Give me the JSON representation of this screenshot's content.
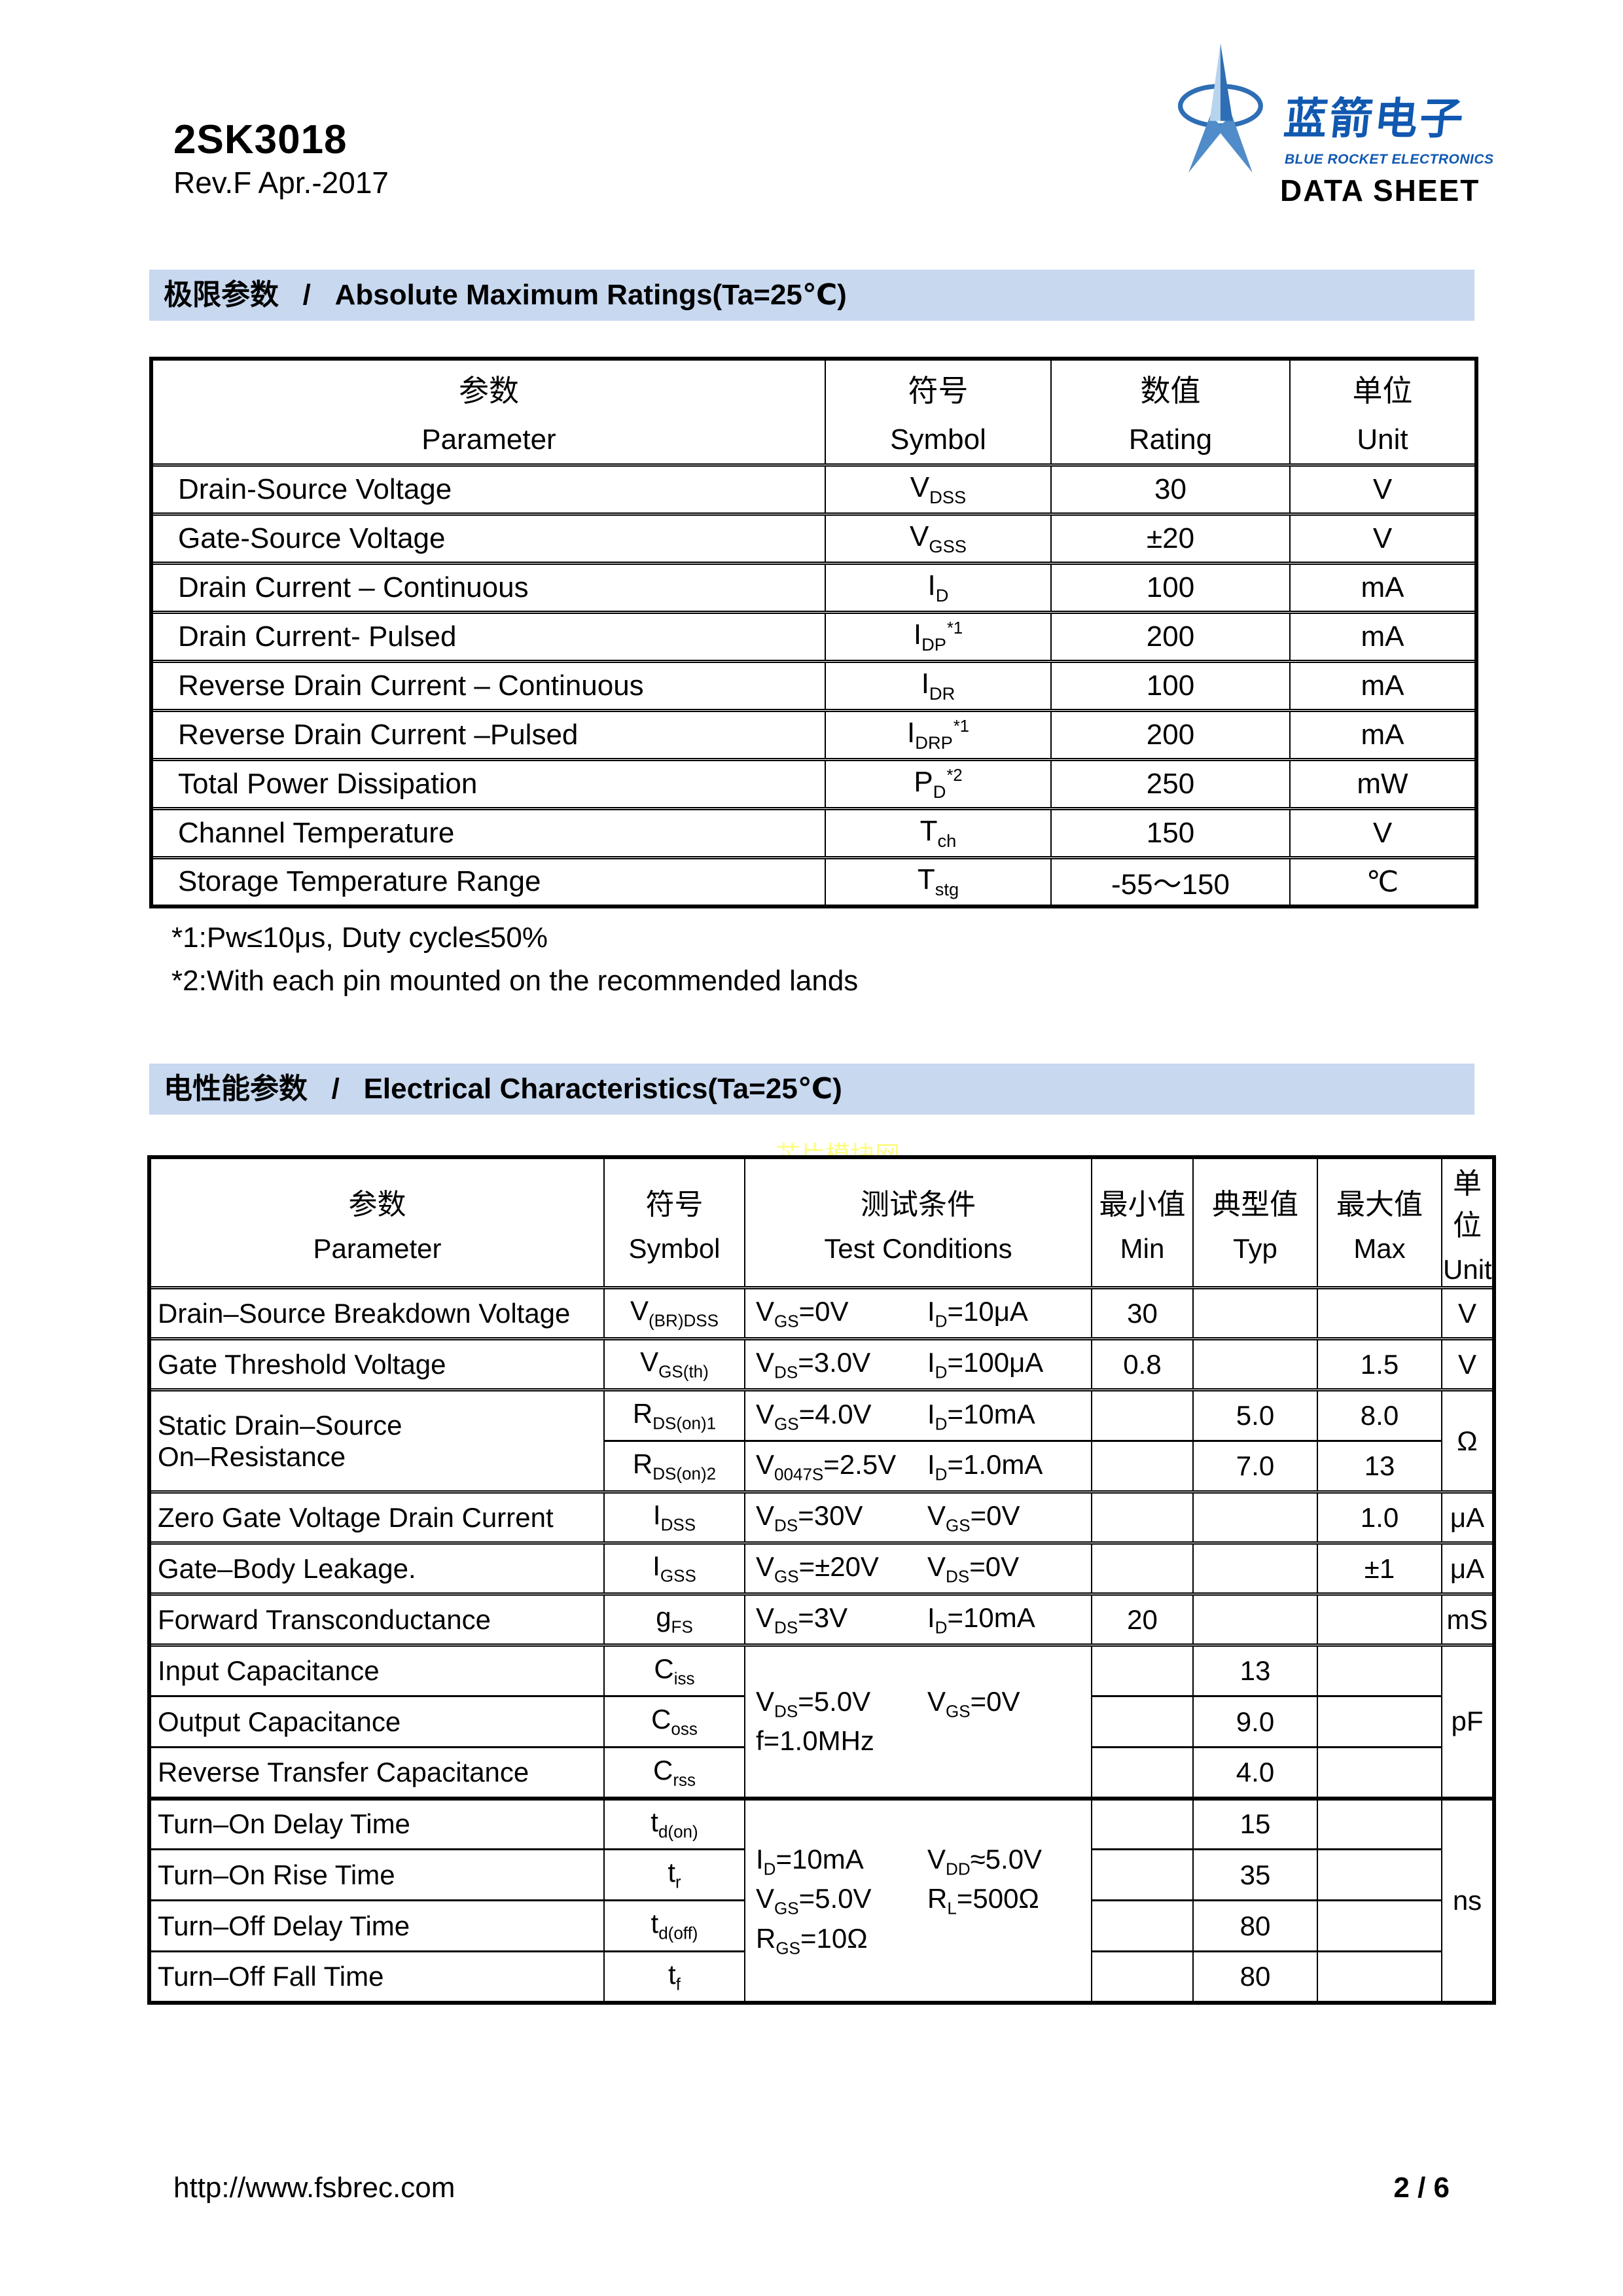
{
  "page": {
    "product": "2SK3018",
    "revision": "Rev.F Apr.-2017",
    "brand_cn": "蓝箭电子",
    "brand_en": "BLUE ROCKET ELECTRONICS",
    "doc_type": "DATA SHEET",
    "watermark": "芯片模块网",
    "footer_url": "http://www.fsbrec.com",
    "footer_page": "2 / 6"
  },
  "colors": {
    "section_bar": "#c7d8ef",
    "logo_dark": "#2e6eb5",
    "logo_mid": "#4f8cc9",
    "logo_light": "#b8d3ec",
    "brand_blue": "#1058b0",
    "watermark_yellow": "#fcfc7d"
  },
  "sections": [
    {
      "title": "极限参数   /   Absolute Maximum Ratings(Ta=25℃)"
    },
    {
      "title": "电性能参数   /   Electrical Characteristics(Ta=25℃)"
    }
  ],
  "abs_max": {
    "headers": [
      {
        "cn": "参数",
        "en": "Parameter"
      },
      {
        "cn": "符号",
        "en": "Symbol"
      },
      {
        "cn": "数值",
        "en": "Rating"
      },
      {
        "cn": "单位",
        "en": "Unit"
      }
    ],
    "rows": [
      {
        "param": "Drain-Source Voltage",
        "symbol": "V_{DSS}",
        "rating": "30",
        "unit": "V"
      },
      {
        "param": "Gate-Source Voltage",
        "symbol": "V_{GSS}",
        "rating": "±20",
        "unit": "V"
      },
      {
        "param": "Drain Current – Continuous",
        "symbol": "I_{D}",
        "rating": "100",
        "unit": "mA"
      },
      {
        "param": "Drain Current- Pulsed",
        "symbol": "I_{DP}^{*1}",
        "rating": "200",
        "unit": "mA"
      },
      {
        "param": "Reverse Drain Current – Continuous",
        "symbol": "I_{DR}",
        "rating": "100",
        "unit": "mA"
      },
      {
        "param": "Reverse Drain Current –Pulsed",
        "symbol": "I_{DRP}^{*1}",
        "rating": "200",
        "unit": "mA"
      },
      {
        "param": "Total Power Dissipation",
        "symbol": "P_{D}^{*2}",
        "rating": "250",
        "unit": "mW"
      },
      {
        "param": "Channel Temperature",
        "symbol": "T_{ch}",
        "rating": "150",
        "unit": "V"
      },
      {
        "param": "Storage Temperature Range",
        "symbol": "T_{stg}",
        "rating": "-55～150",
        "unit": "℃"
      }
    ],
    "notes": [
      "*1:Pw≤10μs, Duty cycle≤50%",
      "*2:With each pin mounted on the recommended lands"
    ]
  },
  "elec": {
    "headers": [
      {
        "cn": "参数",
        "en": "Parameter"
      },
      {
        "cn": "符号",
        "en": "Symbol"
      },
      {
        "cn": "测试条件",
        "en": "Test Conditions"
      },
      {
        "cn": "最小值",
        "en": "Min"
      },
      {
        "cn": "典型值",
        "en": "Typ"
      },
      {
        "cn": "最大值",
        "en": "Max"
      },
      {
        "cn": "单位",
        "en": "Unit"
      }
    ],
    "rows": [
      {
        "param": "Drain–Source Breakdown Voltage",
        "symbol": "V_{(BR)DSS}",
        "cond": [
          [
            "V_{GS}=0V",
            "I_{D}=10μA"
          ]
        ],
        "min": "30",
        "typ": "",
        "max": "",
        "unit": "V"
      },
      {
        "param": "Gate Threshold Voltage",
        "symbol": "V_{GS(th)}",
        "cond": [
          [
            "V_{DS}=3.0V",
            "I_{D}=100μA"
          ]
        ],
        "min": "0.8",
        "typ": "",
        "max": "1.5",
        "unit": "V"
      },
      {
        "param": "Static Drain–Source\nOn–Resistance",
        "param_rowspan": 2,
        "symbol": "R_{DS(on)1}",
        "cond": [
          [
            "V_{GS}=4.0V",
            "I_{D}=10mA"
          ]
        ],
        "min": "",
        "typ": "5.0",
        "max": "8.0",
        "unit": "Ω",
        "unit_rowspan": 2
      },
      {
        "sub": true,
        "symbol": "R_{DS(on)2}",
        "cond": [
          [
            "V_{0047S}=2.5V",
            "I_{D}=1.0mA"
          ]
        ],
        "min": "",
        "typ": "7.0",
        "max": "13"
      },
      {
        "param": "Zero Gate Voltage Drain Current",
        "symbol": "I_{DSS}",
        "cond": [
          [
            "V_{DS}=30V",
            "V_{GS}=0V"
          ]
        ],
        "min": "",
        "typ": "",
        "max": "1.0",
        "unit": "μA"
      },
      {
        "param": "Gate–Body Leakage.",
        "symbol": "I_{GSS}",
        "cond": [
          [
            "V_{GS}=±20V",
            "V_{DS}=0V"
          ]
        ],
        "min": "",
        "typ": "",
        "max": "±1",
        "unit": "μA"
      },
      {
        "param": "Forward Transconductance",
        "symbol": "g_{FS}",
        "cond": [
          [
            "V_{DS}=3V",
            "I_{D}=10mA"
          ]
        ],
        "min": "20",
        "typ": "",
        "max": "",
        "unit": "mS"
      },
      {
        "param": "Input Capacitance",
        "symbol": "C_{iss}",
        "cond": [
          [
            "V_{DS}=5.0V",
            "V_{GS}=0V"
          ],
          [
            "f=1.0MHz",
            ""
          ]
        ],
        "cond_rowspan": 3,
        "min": "",
        "typ": "13",
        "max": "",
        "unit": "pF",
        "unit_rowspan": 3
      },
      {
        "sub": true,
        "param": "Output Capacitance",
        "symbol": "C_{oss}",
        "min": "",
        "typ": "9.0",
        "max": ""
      },
      {
        "sub": true,
        "param": "Reverse Transfer Capacitance",
        "symbol": "C_{rss}",
        "min": "",
        "typ": "4.0",
        "max": ""
      },
      {
        "group_top": true,
        "param": "Turn–On Delay Time",
        "symbol": "t_{d(on)}",
        "cond": [
          [
            "I_{D}=10mA",
            "V_{DD}≈5.0V"
          ],
          [
            "V_{GS}=5.0V",
            "R_{L}=500Ω"
          ],
          [
            "R_{GS}=10Ω",
            ""
          ]
        ],
        "cond_rowspan": 4,
        "min": "",
        "typ": "15",
        "max": "",
        "unit": "ns",
        "unit_rowspan": 4
      },
      {
        "sub": true,
        "param": "Turn–On Rise Time",
        "symbol": "t_{r}",
        "min": "",
        "typ": "35",
        "max": ""
      },
      {
        "sub": true,
        "param": "Turn–Off Delay Time",
        "symbol": "t_{d(off)}",
        "min": "",
        "typ": "80",
        "max": ""
      },
      {
        "sub": true,
        "param": "Turn–Off Fall Time",
        "symbol": "t_{f}",
        "min": "",
        "typ": "80",
        "max": ""
      }
    ]
  }
}
